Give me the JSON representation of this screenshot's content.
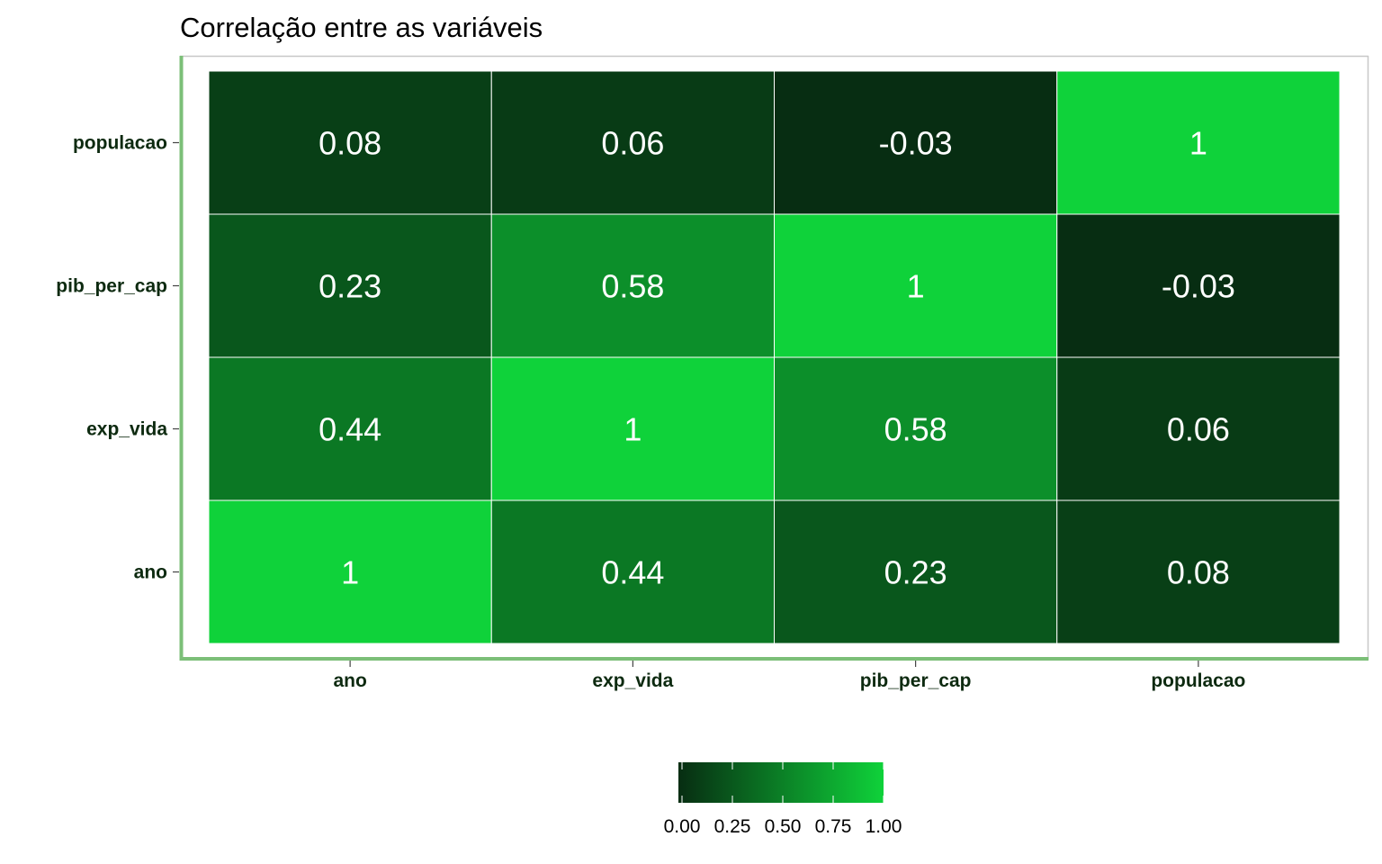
{
  "chart_data": {
    "type": "heatmap",
    "title": "Correlação entre as variáveis",
    "x_categories": [
      "ano",
      "exp_vida",
      "pib_per_cap",
      "populacao"
    ],
    "y_categories": [
      "ano",
      "exp_vida",
      "pib_per_cap",
      "populacao"
    ],
    "matrix": [
      [
        1,
        0.44,
        0.23,
        0.08
      ],
      [
        0.44,
        1,
        0.58,
        0.06
      ],
      [
        0.23,
        0.58,
        1,
        -0.03
      ],
      [
        0.08,
        0.06,
        -0.03,
        1
      ]
    ],
    "cell_labels": [
      [
        "1",
        "0.44",
        "0.23",
        "0.08"
      ],
      [
        "0.44",
        "1",
        "0.58",
        "0.06"
      ],
      [
        "0.23",
        "0.58",
        "1",
        "-0.03"
      ],
      [
        "0.08",
        "0.06",
        "-0.03",
        "1"
      ]
    ],
    "color_scale": {
      "low": "#072d12",
      "high": "#0fd23a",
      "range": [
        -0.03,
        1
      ]
    },
    "legend": {
      "position": "bottom",
      "ticks": [
        0,
        0.25,
        0.5,
        0.75,
        1
      ],
      "tick_labels": [
        "0.00",
        "0.25",
        "0.50",
        "0.75",
        "1.00"
      ]
    },
    "panel_border_color": "#7cbf78"
  }
}
